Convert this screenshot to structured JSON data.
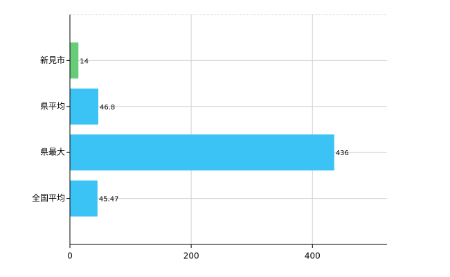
{
  "chart_data": {
    "type": "hbar",
    "categories": [
      "新見市",
      "県平均",
      "県最大",
      "全国平均"
    ],
    "values": [
      14,
      46.8,
      436,
      45.47
    ],
    "colors": [
      "#66cc77",
      "#3cc3f5",
      "#3cc3f5",
      "#3cc3f5"
    ],
    "xlim": [
      0,
      523
    ],
    "xticks": [
      0,
      200,
      400
    ],
    "grid": true
  }
}
